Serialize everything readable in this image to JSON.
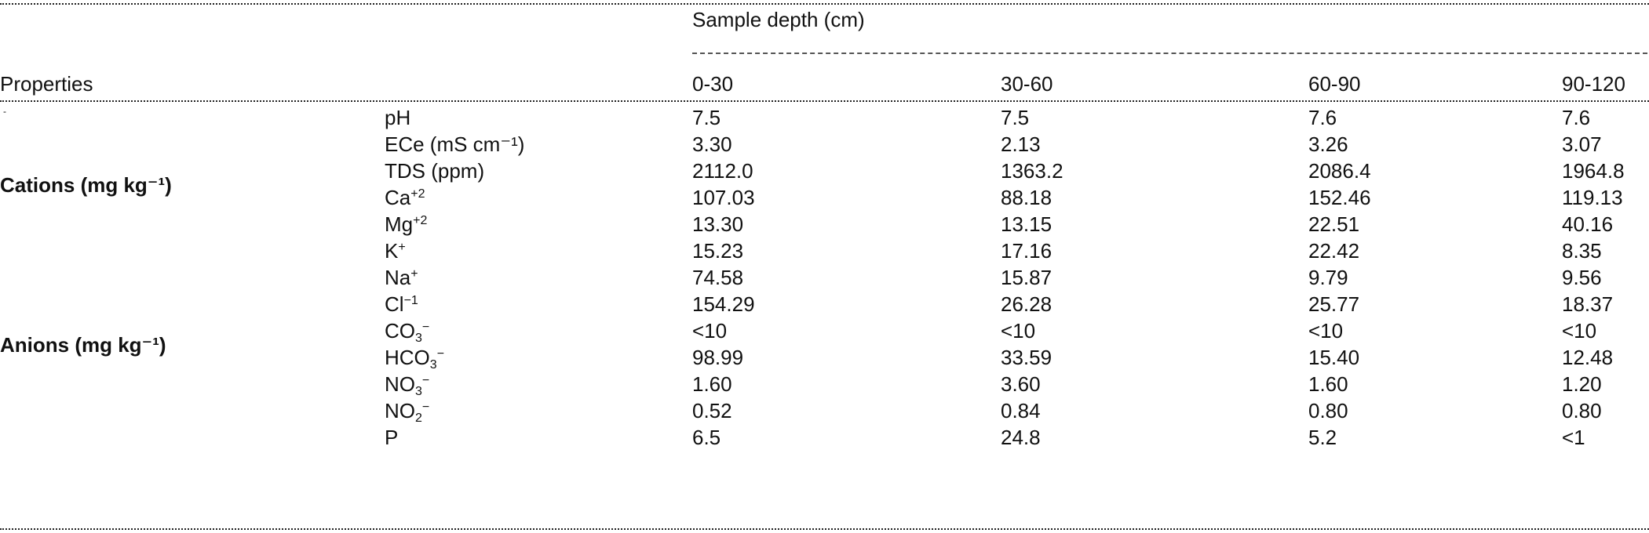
{
  "table": {
    "spanning_header": "Sample depth (cm)",
    "properties_header": "Properties",
    "stub_mark": "-",
    "columns": [
      "0-30",
      "30-60",
      "60-90",
      "90-120"
    ],
    "groups": {
      "cations": "Cations (mg kg⁻¹)",
      "anions": "Anions (mg kg⁻¹)"
    },
    "rows": [
      {
        "base": "pH",
        "sup": "",
        "sub": "",
        "suffix": "",
        "values": [
          "7.5",
          "7.5",
          "7.6",
          "7.6"
        ]
      },
      {
        "base": "ECe (mS cm⁻¹)",
        "sup": "",
        "sub": "",
        "suffix": "",
        "values": [
          "3.30",
          "2.13",
          "3.26",
          "3.07"
        ]
      },
      {
        "base": "TDS (ppm)",
        "sup": "",
        "sub": "",
        "suffix": "",
        "values": [
          "2112.0",
          "1363.2",
          "2086.4",
          "1964.8"
        ]
      },
      {
        "base": "Ca",
        "sup": "+2",
        "sub": "",
        "suffix": "",
        "values": [
          "107.03",
          "88.18",
          "152.46",
          "119.13"
        ]
      },
      {
        "base": "Mg",
        "sup": "+2",
        "sub": "",
        "suffix": "",
        "values": [
          "13.30",
          "13.15",
          "22.51",
          "40.16"
        ]
      },
      {
        "base": "K",
        "sup": "+",
        "sub": "",
        "suffix": "",
        "values": [
          "15.23",
          "17.16",
          "22.42",
          "8.35"
        ]
      },
      {
        "base": "Na",
        "sup": "+",
        "sub": "",
        "suffix": "",
        "values": [
          "74.58",
          "15.87",
          "9.79",
          "9.56"
        ]
      },
      {
        "base": "Cl",
        "sup": "−1",
        "sub": "",
        "suffix": "",
        "values": [
          "154.29",
          "26.28",
          "25.77",
          "18.37"
        ]
      },
      {
        "base": "CO",
        "sup": "",
        "sub": "3",
        "suffix": "−",
        "values": [
          "<10",
          "<10",
          "<10",
          "<10"
        ]
      },
      {
        "base": "HCO",
        "sup": "",
        "sub": "3",
        "suffix": "−",
        "values": [
          "98.99",
          "33.59",
          "15.40",
          "12.48"
        ]
      },
      {
        "base": "NO",
        "sup": "",
        "sub": "3",
        "suffix": "−",
        "values": [
          "1.60",
          "3.60",
          "1.60",
          "1.20"
        ]
      },
      {
        "base": "NO",
        "sup": "",
        "sub": "2",
        "suffix": "−",
        "values": [
          "0.52",
          "0.84",
          "0.80",
          "0.80"
        ]
      },
      {
        "base": "P",
        "sup": "",
        "sub": "",
        "suffix": "",
        "values": [
          "6.5",
          "24.8",
          "5.2",
          "<1"
        ]
      }
    ]
  }
}
